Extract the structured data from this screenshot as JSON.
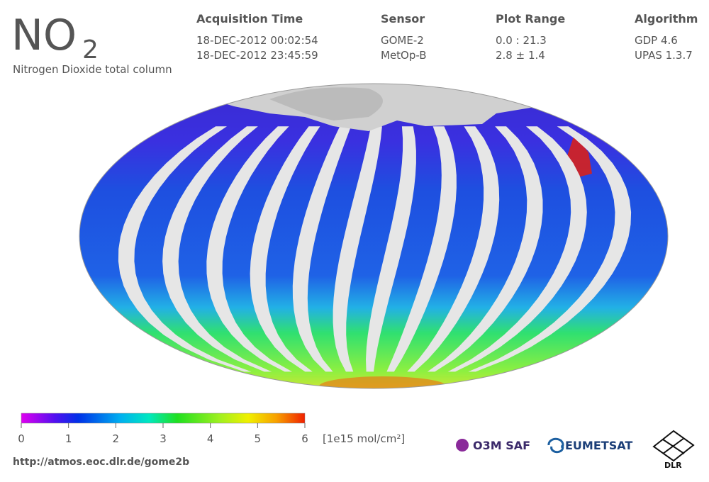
{
  "header": {
    "title": "NO",
    "title_subscript": "2",
    "subtitle": "Nitrogen Dioxide total column"
  },
  "info": [
    {
      "heading": "Acquisition Time",
      "lines": [
        "18-DEC-2012 00:02:54",
        "18-DEC-2012 23:45:59"
      ]
    },
    {
      "heading": "Sensor",
      "lines": [
        "GOME-2",
        "MetOp-B"
      ]
    },
    {
      "heading": "Plot Range",
      "lines": [
        "0.0 : 21.3",
        "2.8 ± 1.4"
      ]
    },
    {
      "heading": "Algorithm",
      "lines": [
        "GDP 4.6",
        "UPAS 1.3.7"
      ]
    }
  ],
  "colorbar": {
    "ticks": [
      0,
      1,
      2,
      3,
      4,
      5,
      6
    ],
    "unit": "[1e15 mol/cm²]"
  },
  "footer": {
    "url": "http://atmos.eoc.dlr.de/gome2b",
    "logos": [
      "O3M SAF",
      "EUMETSAT",
      "DLR"
    ]
  }
}
